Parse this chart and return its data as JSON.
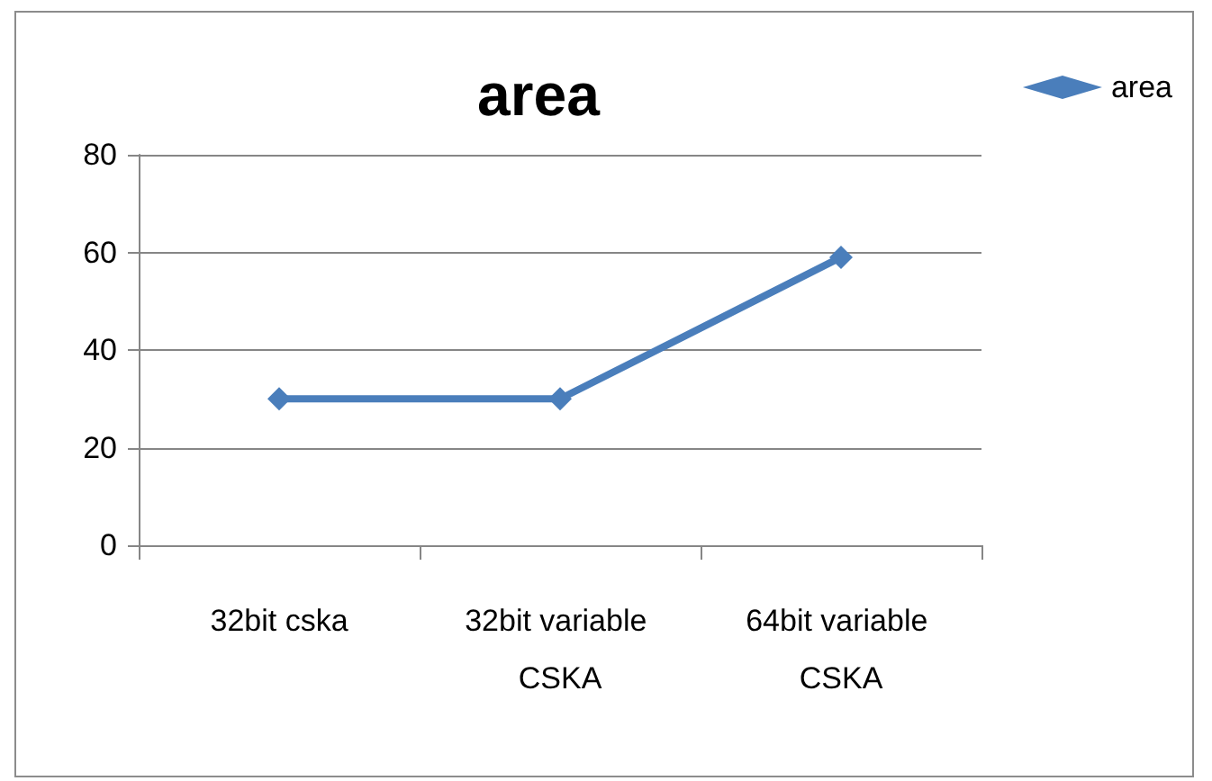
{
  "chart_data": {
    "type": "line",
    "title": "area",
    "categories": [
      "32bit cska",
      "32bit variable CSKA",
      "64bit variable CSKA"
    ],
    "series": [
      {
        "name": "area",
        "color": "#4a7ebb",
        "values": [
          30,
          30,
          59
        ]
      }
    ],
    "ylim": [
      0,
      80
    ],
    "yticks": [
      0,
      20,
      40,
      60,
      80
    ],
    "grid": "y",
    "legend": "top right",
    "marker": "diamond",
    "line_style": "solid"
  }
}
